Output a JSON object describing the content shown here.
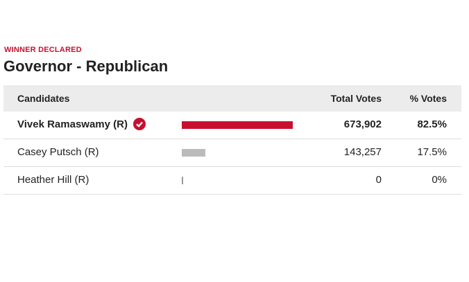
{
  "header": {
    "label": "WINNER DECLARED",
    "title": "Governor - Republican"
  },
  "table": {
    "columns": [
      "Candidates",
      "Total Votes",
      "% Votes"
    ],
    "rows": [
      {
        "candidate": "Vivek Ramaswamy (R)",
        "winner": true,
        "votes": "673,902",
        "percent": {
          "value": 82.5,
          "label": "82.5%"
        }
      },
      {
        "candidate": "Casey Putsch (R)",
        "winner": false,
        "votes": "143,257",
        "percent": {
          "value": 17.5,
          "label": "17.5%"
        }
      },
      {
        "candidate": "Heather Hill (R)",
        "winner": false,
        "votes": "0",
        "percent": {
          "value": 0,
          "label": "0%"
        }
      }
    ]
  }
}
